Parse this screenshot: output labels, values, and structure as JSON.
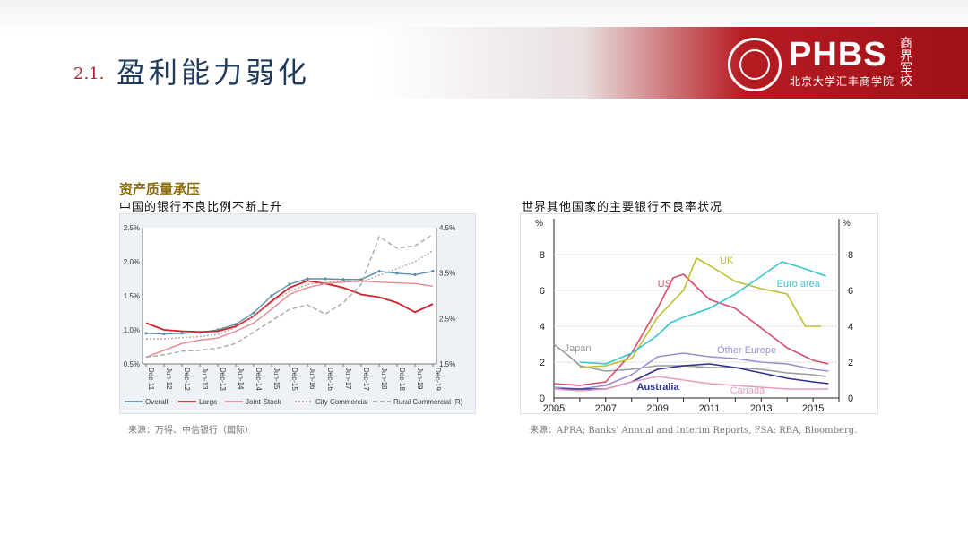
{
  "slide": {
    "section_number": "2.1.",
    "title": "盈利能力弱化",
    "logo_text": "PHBS",
    "logo_subtitle": "北京大学汇丰商学院",
    "logo_calligraphy": "商界军校"
  },
  "left_panel": {
    "heading": "资产质量承压",
    "subheading": "中国的银行不良比例不断上升",
    "source": "来源：万得、中信银行（国际）"
  },
  "right_panel": {
    "subheading": "世界其他国家的主要银行不良率状况",
    "source": "来源：APRA; Banks’ Annual and Interim Reports, FSA; RBA, Bloomberg."
  },
  "chart_data": [
    {
      "type": "line",
      "x": [
        "Dec-11",
        "Jun-12",
        "Dec-12",
        "Jun-13",
        "Dec-13",
        "Jun-14",
        "Dec-14",
        "Jun-15",
        "Dec-15",
        "Jun-16",
        "Dec-16",
        "Jun-17",
        "Dec-17",
        "Jun-18",
        "Dec-18",
        "Jun-19",
        "Dec-19"
      ],
      "ylim": [
        0.5,
        2.5
      ],
      "yticks": [
        "2.5%",
        "2.0%",
        "1.5%",
        "1.0%",
        "0.5%"
      ],
      "y2lim": [
        1.5,
        4.5
      ],
      "y2ticks": [
        "4.5%",
        "3.5%",
        "2.5%",
        "1.5%"
      ],
      "series": [
        {
          "name": "Overall",
          "axis": "left",
          "color": "#5b8fa8",
          "style": "solid-marker",
          "values": [
            0.95,
            0.94,
            0.95,
            0.96,
            1.0,
            1.08,
            1.25,
            1.5,
            1.67,
            1.75,
            1.75,
            1.74,
            1.74,
            1.86,
            1.83,
            1.81,
            1.86
          ]
        },
        {
          "name": "Large",
          "axis": "left",
          "color": "#d0212a",
          "style": "solid",
          "values": [
            1.1,
            1.0,
            0.98,
            0.97,
            0.98,
            1.05,
            1.2,
            1.42,
            1.62,
            1.72,
            1.68,
            1.62,
            1.52,
            1.48,
            1.4,
            1.26,
            1.38
          ]
        },
        {
          "name": "Joint-Stock",
          "axis": "left",
          "color": "#e8878c",
          "style": "solid",
          "values": [
            0.6,
            0.7,
            0.8,
            0.85,
            0.88,
            0.98,
            1.1,
            1.3,
            1.52,
            1.62,
            1.68,
            1.7,
            1.72,
            1.7,
            1.69,
            1.68,
            1.64
          ]
        },
        {
          "name": "City Commercial",
          "axis": "right",
          "color": "#c0a0a0",
          "style": "dotted",
          "values": [
            2.05,
            2.05,
            2.08,
            2.1,
            2.15,
            2.3,
            2.55,
            2.85,
            3.1,
            3.25,
            3.3,
            3.32,
            3.3,
            3.45,
            3.6,
            3.75,
            4.0
          ]
        },
        {
          "name": "Rural Commercial (R)",
          "axis": "right",
          "color": "#a8a8a8",
          "style": "dashed",
          "values": [
            1.65,
            1.7,
            1.78,
            1.8,
            1.85,
            1.95,
            2.2,
            2.45,
            2.7,
            2.8,
            2.6,
            2.85,
            3.25,
            4.3,
            4.05,
            4.1,
            4.35
          ]
        }
      ]
    },
    {
      "type": "line",
      "x": [
        "2005",
        "2007",
        "2009",
        "2011",
        "2013",
        "2015"
      ],
      "xlim": [
        2005,
        2016
      ],
      "ylim": [
        0,
        10
      ],
      "yticks": [
        "0",
        "2",
        "4",
        "6",
        "8"
      ],
      "y2ticks": [
        "0",
        "2",
        "4",
        "6",
        "8"
      ],
      "yunit": "%",
      "y2unit": "%",
      "series": [
        {
          "name": "Japan",
          "color": "#9a9a9a",
          "points": [
            [
              2005,
              3.0
            ],
            [
              2005.7,
              2.2
            ],
            [
              2006,
              1.8
            ],
            [
              2007,
              1.5
            ],
            [
              2008,
              1.6
            ],
            [
              2009,
              1.8
            ],
            [
              2010,
              1.8
            ],
            [
              2011,
              1.7
            ],
            [
              2012,
              1.7
            ],
            [
              2013,
              1.6
            ],
            [
              2014,
              1.4
            ],
            [
              2015,
              1.3
            ],
            [
              2015.5,
              1.2
            ]
          ]
        },
        {
          "name": "US",
          "color": "#d84a6a",
          "points": [
            [
              2005,
              0.8
            ],
            [
              2006,
              0.7
            ],
            [
              2007,
              0.9
            ],
            [
              2008,
              2.5
            ],
            [
              2009,
              5.0
            ],
            [
              2009.6,
              6.7
            ],
            [
              2010,
              6.9
            ],
            [
              2011,
              5.5
            ],
            [
              2012,
              5.0
            ],
            [
              2013,
              3.9
            ],
            [
              2014,
              2.8
            ],
            [
              2015,
              2.1
            ],
            [
              2015.6,
              1.9
            ]
          ]
        },
        {
          "name": "UK",
          "color": "#bcbe2a",
          "points": [
            [
              2006,
              1.7
            ],
            [
              2007,
              1.8
            ],
            [
              2008,
              2.2
            ],
            [
              2009,
              4.5
            ],
            [
              2010,
              6.0
            ],
            [
              2010.5,
              7.8
            ],
            [
              2011,
              7.4
            ],
            [
              2012,
              6.5
            ],
            [
              2013,
              6.1
            ],
            [
              2014,
              5.8
            ],
            [
              2014.7,
              4.0
            ],
            [
              2015.3,
              4.0
            ]
          ]
        },
        {
          "name": "Euro area",
          "color": "#36c8d0",
          "points": [
            [
              2006,
              2.0
            ],
            [
              2007,
              1.9
            ],
            [
              2008,
              2.5
            ],
            [
              2009,
              3.5
            ],
            [
              2009.5,
              4.2
            ],
            [
              2010,
              4.5
            ],
            [
              2011,
              5.0
            ],
            [
              2012,
              5.8
            ],
            [
              2013,
              6.8
            ],
            [
              2013.8,
              7.6
            ],
            [
              2014.5,
              7.3
            ],
            [
              2015.5,
              6.8
            ]
          ]
        },
        {
          "name": "Other Europe",
          "color": "#9f8cd0",
          "points": [
            [
              2005,
              0.6
            ],
            [
              2006,
              0.5
            ],
            [
              2007,
              0.7
            ],
            [
              2008,
              1.3
            ],
            [
              2009,
              2.3
            ],
            [
              2010,
              2.5
            ],
            [
              2011,
              2.3
            ],
            [
              2012,
              2.2
            ],
            [
              2013,
              2.0
            ],
            [
              2014,
              1.9
            ],
            [
              2015,
              1.6
            ],
            [
              2015.6,
              1.5
            ]
          ]
        },
        {
          "name": "Australia",
          "color": "#2f2f8f",
          "points": [
            [
              2005,
              0.5
            ],
            [
              2006,
              0.5
            ],
            [
              2007,
              0.5
            ],
            [
              2008,
              0.9
            ],
            [
              2009,
              1.6
            ],
            [
              2010,
              1.8
            ],
            [
              2011,
              1.9
            ],
            [
              2012,
              1.7
            ],
            [
              2013,
              1.4
            ],
            [
              2014,
              1.1
            ],
            [
              2015,
              0.9
            ],
            [
              2015.6,
              0.8
            ]
          ]
        },
        {
          "name": "Canada",
          "color": "#e49cc0",
          "points": [
            [
              2005,
              0.5
            ],
            [
              2006,
              0.4
            ],
            [
              2007,
              0.5
            ],
            [
              2008,
              0.9
            ],
            [
              2009,
              1.2
            ],
            [
              2010,
              1.0
            ],
            [
              2011,
              0.8
            ],
            [
              2012,
              0.7
            ],
            [
              2013,
              0.6
            ],
            [
              2014,
              0.5
            ],
            [
              2015,
              0.5
            ],
            [
              2015.6,
              0.5
            ]
          ]
        }
      ]
    }
  ]
}
